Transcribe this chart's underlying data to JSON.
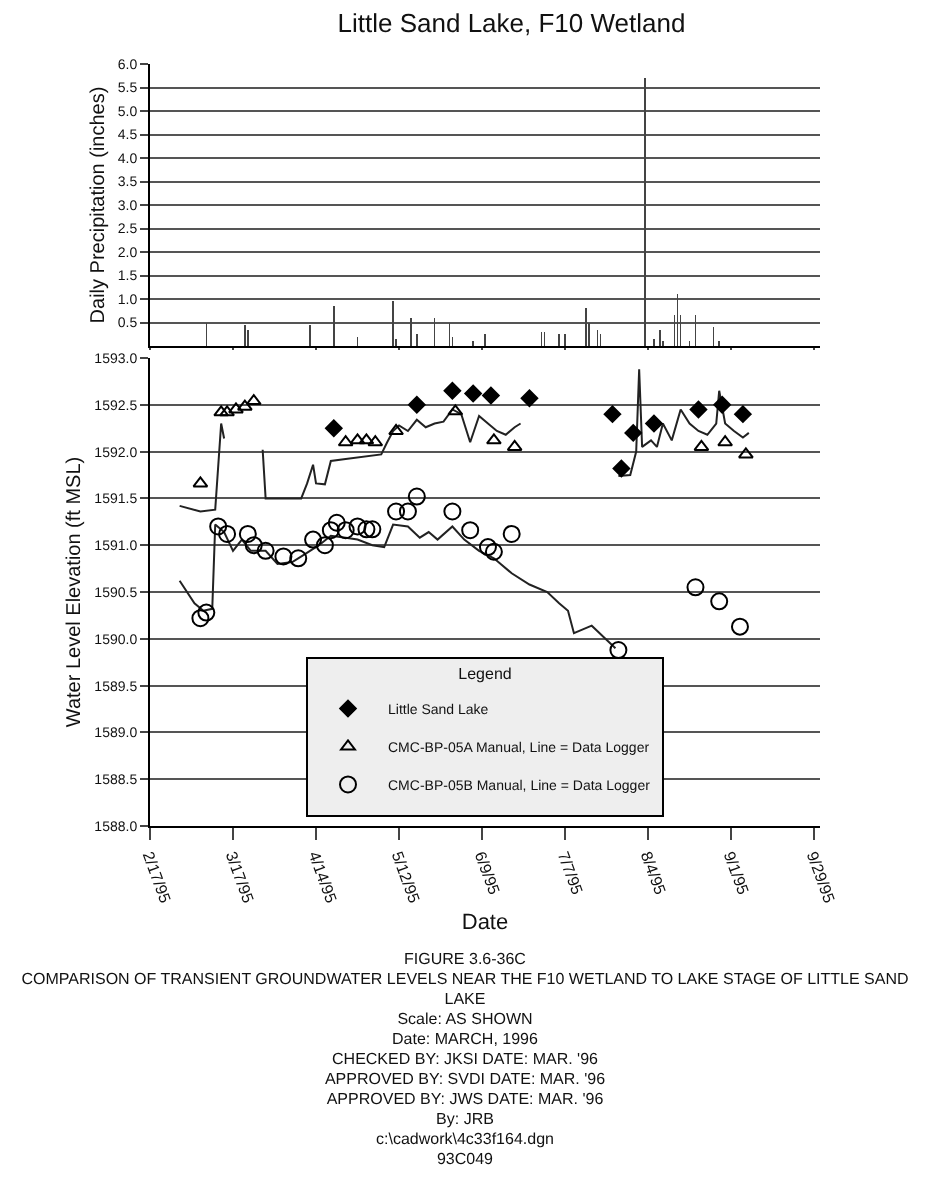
{
  "chart_data": [
    {
      "type": "bar",
      "title": "Little Sand Lake, F10 Wetland",
      "ylabel": "Daily Precipitation (inches)",
      "tick_labels": "y",
      "grid": "y",
      "x": [
        "1995-03-08",
        "1995-03-21",
        "1995-03-22",
        "1995-04-12",
        "1995-04-20",
        "1995-04-28",
        "1995-05-10",
        "1995-05-11",
        "1995-05-16",
        "1995-05-18",
        "1995-05-24",
        "1995-05-29",
        "1995-05-30",
        "1995-06-06",
        "1995-06-10",
        "1995-06-29",
        "1995-06-30",
        "1995-07-05",
        "1995-07-07",
        "1995-07-14",
        "1995-07-15",
        "1995-07-18",
        "1995-07-19",
        "1995-08-03",
        "1995-08-06",
        "1995-08-08",
        "1995-08-09",
        "1995-08-13",
        "1995-08-14",
        "1995-08-15",
        "1995-08-18",
        "1995-08-20",
        "1995-08-26",
        "1995-08-28"
      ],
      "values": [
        0.5,
        0.45,
        0.35,
        0.45,
        0.85,
        0.2,
        0.95,
        0.15,
        0.6,
        0.25,
        0.6,
        0.5,
        0.2,
        0.1,
        0.25,
        0.3,
        0.3,
        0.25,
        0.25,
        0.8,
        0.5,
        0.35,
        0.25,
        5.7,
        0.15,
        0.35,
        0.1,
        0.65,
        1.1,
        0.65,
        0.1,
        0.65,
        0.4,
        0.1
      ],
      "color": "#444444",
      "xlim": [
        "1995-02-17",
        "1995-10-01"
      ],
      "xticks": [
        {
          "value": "1995-02-17",
          "label": null
        },
        {
          "value": "1995-03-17",
          "label": null
        },
        {
          "value": "1995-04-14",
          "label": null
        },
        {
          "value": "1995-05-12",
          "label": null
        },
        {
          "value": "1995-06-09",
          "label": null
        },
        {
          "value": "1995-07-07",
          "label": null
        },
        {
          "value": "1995-08-04",
          "label": null
        },
        {
          "value": "1995-09-01",
          "label": null
        },
        {
          "value": "1995-09-29",
          "label": null
        }
      ],
      "ylim": [
        0,
        6
      ],
      "yticks": [
        {
          "value": 0.5,
          "label": "0.5"
        },
        {
          "value": 1,
          "label": "1.0"
        },
        {
          "value": 1.5,
          "label": "1.5"
        },
        {
          "value": 2,
          "label": "2.0"
        },
        {
          "value": 2.5,
          "label": "2.5"
        },
        {
          "value": 3,
          "label": "3.0"
        },
        {
          "value": 3.5,
          "label": "3.5"
        },
        {
          "value": 4,
          "label": "4.0"
        },
        {
          "value": 4.5,
          "label": "4.5"
        },
        {
          "value": 5,
          "label": "5.0"
        },
        {
          "value": 5.5,
          "label": "5.5"
        },
        {
          "value": 6,
          "label": "6.0"
        }
      ]
    },
    {
      "type": "line",
      "xlabel": "Date",
      "ylabel": "Water Level Elevation (ft MSL)",
      "legend_title": "Legend",
      "legend": "bottom",
      "grid": "y",
      "xlim": [
        "1995-02-17",
        "1995-10-01"
      ],
      "xticks": [
        {
          "value": "1995-02-17",
          "label": "2/17/95"
        },
        {
          "value": "1995-03-17",
          "label": "3/17/95"
        },
        {
          "value": "1995-04-14",
          "label": "4/14/95"
        },
        {
          "value": "1995-05-12",
          "label": "5/12/95"
        },
        {
          "value": "1995-06-09",
          "label": "6/9/95"
        },
        {
          "value": "1995-07-07",
          "label": "7/7/95"
        },
        {
          "value": "1995-08-04",
          "label": "8/4/95"
        },
        {
          "value": "1995-09-01",
          "label": "9/1/95"
        },
        {
          "value": "1995-09-29",
          "label": "9/29/95"
        }
      ],
      "ylim": [
        1588,
        1593
      ],
      "yticks": [
        {
          "value": 1588,
          "label": "1588.0"
        },
        {
          "value": 1588.5,
          "label": "1588.5"
        },
        {
          "value": 1589,
          "label": "1589.0"
        },
        {
          "value": 1589.5,
          "label": "1589.5"
        },
        {
          "value": 1590,
          "label": "1590.0"
        },
        {
          "value": 1590.5,
          "label": "1590.5"
        },
        {
          "value": 1591,
          "label": "1591.0"
        },
        {
          "value": 1591.5,
          "label": "1591.5"
        },
        {
          "value": 1592,
          "label": "1592.0"
        },
        {
          "value": 1592.5,
          "label": "1592.5"
        },
        {
          "value": 1593,
          "label": "1593.0"
        }
      ],
      "series": [
        {
          "color": "#222222",
          "marker": "none",
          "x": [
            "1995-02-27",
            "1995-03-06",
            "1995-03-11",
            "1995-03-13",
            "1995-03-14",
            "1995-03-20",
            "1995-03-27",
            "1995-03-28",
            "1995-04-09",
            "1995-04-11",
            "1995-04-13",
            "1995-04-14",
            "1995-04-17",
            "1995-04-19",
            "1995-04-24",
            "1995-05-06",
            "1995-05-08",
            "1995-05-10",
            "1995-05-12",
            "1995-05-15",
            "1995-05-18",
            "1995-05-21",
            "1995-05-24",
            "1995-05-27",
            "1995-05-30",
            "1995-06-02",
            "1995-06-05",
            "1995-06-08",
            "1995-06-11",
            "1995-06-14",
            "1995-06-17",
            "1995-06-20",
            "1995-06-22",
            "1995-07-10",
            "1995-07-25",
            "1995-07-29",
            "1995-07-31",
            "1995-08-01",
            "1995-08-02",
            "1995-08-05",
            "1995-08-07",
            "1995-08-09",
            "1995-08-12",
            "1995-08-15",
            "1995-08-18",
            "1995-08-21",
            "1995-08-24",
            "1995-08-27",
            "1995-08-28",
            "1995-08-30",
            "1995-09-02",
            "1995-09-05",
            "1995-09-07"
          ],
          "values": [
            1591.42,
            1591.36,
            1591.38,
            1592.3,
            1592.14,
            null,
            1592.02,
            1591.5,
            1591.5,
            1591.66,
            1591.86,
            1591.66,
            1591.65,
            1591.9,
            1591.92,
            1591.97,
            1592.1,
            1592.22,
            1592.28,
            1592.22,
            1592.34,
            1592.26,
            1592.3,
            1592.32,
            1592.45,
            1592.4,
            1592.1,
            1592.38,
            1592.3,
            1592.22,
            1592.18,
            1592.26,
            1592.3,
            null,
            1591.74,
            1591.75,
            1592.0,
            1592.88,
            1592.05,
            1592.12,
            1592.05,
            1592.3,
            1592.12,
            1592.45,
            1592.3,
            1592.22,
            1592.18,
            1592.3,
            1592.65,
            1592.3,
            1592.22,
            1592.15,
            1592.2
          ]
        },
        {
          "color": "#222222",
          "marker": "none",
          "x": [
            "1995-02-27",
            "1995-03-04",
            "1995-03-07",
            "1995-03-10",
            "1995-03-11",
            "1995-03-14",
            "1995-03-17",
            "1995-03-20",
            "1995-03-23",
            "1995-03-28",
            "1995-04-01",
            "1995-04-06",
            "1995-04-10",
            "1995-04-15",
            "1995-04-19",
            "1995-04-24",
            "1995-04-28",
            "1995-05-03",
            "1995-05-07",
            "1995-05-10",
            "1995-05-15",
            "1995-05-19",
            "1995-05-22",
            "1995-05-25",
            "1995-05-30",
            "1995-06-03",
            "1995-06-08",
            "1995-06-13",
            "1995-06-19",
            "1995-06-25",
            "1995-07-01",
            "1995-07-05",
            "1995-07-08",
            "1995-07-10",
            "1995-07-13",
            "1995-07-16",
            "1995-07-20",
            "1995-07-24"
          ],
          "values": [
            1590.62,
            1590.38,
            1590.3,
            1590.32,
            1591.22,
            1591.14,
            1590.94,
            1591.06,
            1590.94,
            1590.94,
            1590.8,
            1590.82,
            1590.9,
            1591.0,
            1591.1,
            1591.08,
            1591.06,
            1591.0,
            1590.98,
            1591.22,
            1591.2,
            1591.08,
            1591.14,
            1591.06,
            1591.2,
            1591.06,
            1590.94,
            1590.86,
            1590.7,
            1590.58,
            1590.5,
            1590.38,
            1590.3,
            1590.06,
            1590.1,
            1590.14,
            1590.02,
            1589.9
          ]
        },
        {
          "type": "scatter",
          "name": "Little Sand Lake",
          "color": "#000000",
          "marker": "diamond",
          "x": [
            "1995-04-20",
            "1995-05-18",
            "1995-05-30",
            "1995-06-06",
            "1995-06-12",
            "1995-06-25",
            "1995-07-23",
            "1995-07-26",
            "1995-07-30",
            "1995-08-06",
            "1995-08-21",
            "1995-08-29",
            "1995-09-05"
          ],
          "values": [
            1592.25,
            1592.5,
            1592.65,
            1592.62,
            1592.6,
            1592.57,
            1592.4,
            1591.82,
            1592.2,
            1592.3,
            1592.45,
            1592.5,
            1592.4
          ]
        },
        {
          "type": "scatter",
          "name": "CMC-BP-05A Manual, Line = Data Logger",
          "color": "#000000",
          "marker": "triangle",
          "x": [
            "1995-03-06",
            "1995-03-13",
            "1995-03-15",
            "1995-03-18",
            "1995-03-21",
            "1995-03-24",
            "1995-04-24",
            "1995-04-28",
            "1995-05-01",
            "1995-05-04",
            "1995-05-11",
            "1995-05-31",
            "1995-06-13",
            "1995-06-20",
            "1995-08-22",
            "1995-08-30",
            "1995-09-06"
          ],
          "values": [
            1591.66,
            1592.42,
            1592.42,
            1592.45,
            1592.48,
            1592.54,
            1592.1,
            1592.12,
            1592.12,
            1592.1,
            1592.22,
            1592.43,
            1592.12,
            1592.05,
            1592.05,
            1592.1,
            1591.97
          ]
        },
        {
          "type": "scatter",
          "name": "CMC-BP-05B Manual, Line = Data Logger",
          "color": "#000000",
          "marker": "circle",
          "x": [
            "1995-03-06",
            "1995-03-08",
            "1995-03-12",
            "1995-03-15",
            "1995-03-22",
            "1995-03-24",
            "1995-03-28",
            "1995-04-03",
            "1995-04-08",
            "1995-04-13",
            "1995-04-17",
            "1995-04-19",
            "1995-04-21",
            "1995-04-24",
            "1995-04-28",
            "1995-05-01",
            "1995-05-03",
            "1995-05-11",
            "1995-05-15",
            "1995-05-18",
            "1995-05-30",
            "1995-06-05",
            "1995-06-11",
            "1995-06-13",
            "1995-06-19",
            "1995-07-25",
            "1995-08-20",
            "1995-08-28",
            "1995-09-04"
          ],
          "values": [
            1590.22,
            1590.28,
            1591.2,
            1591.12,
            1591.12,
            1591.0,
            1590.94,
            1590.88,
            1590.86,
            1591.06,
            1591.0,
            1591.16,
            1591.24,
            1591.16,
            1591.2,
            1591.17,
            1591.17,
            1591.36,
            1591.36,
            1591.52,
            1591.36,
            1591.16,
            1590.98,
            1590.93,
            1591.12,
            1589.88,
            1590.55,
            1590.4,
            1590.13
          ]
        }
      ],
      "annotations": [
        "FIGURE 3.6-36C",
        "COMPARISON OF TRANSIENT GROUNDWATER LEVELS NEAR THE F10 WETLAND TO LAKE STAGE OF LITTLE SAND LAKE",
        "Scale: AS SHOWN",
        "Date: MARCH, 1996",
        "CHECKED BY: JKSI   DATE: MAR. '96",
        "APPROVED BY: SVDI   DATE: MAR. '96",
        "APPROVED BY: JWS   DATE: MAR. '96",
        "By: JRB",
        "c:\\cadwork\\4c33f164.dgn",
        "93C049"
      ]
    }
  ]
}
